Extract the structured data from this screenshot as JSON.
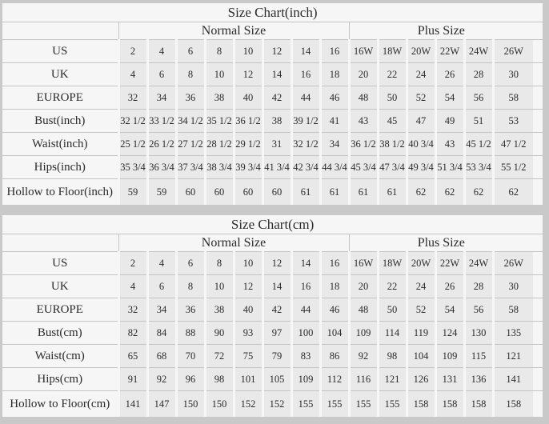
{
  "colors": {
    "page_background": "#c9c9c9",
    "table_background": "#f6f6f6",
    "value_cell_background": "#e9e9e9",
    "grid_line": "#c4c4c4",
    "text": "#2b2b2b"
  },
  "chart_data": [
    {
      "type": "table",
      "title": "Size Chart(inch)",
      "column_groups": [
        {
          "label": "Normal Size",
          "span": 8
        },
        {
          "label": "Plus Size",
          "span": 6
        }
      ],
      "rows": [
        {
          "label": "US",
          "values": [
            "2",
            "4",
            "6",
            "8",
            "10",
            "12",
            "14",
            "16",
            "16W",
            "18W",
            "20W",
            "22W",
            "24W",
            "26W"
          ]
        },
        {
          "label": "UK",
          "values": [
            "4",
            "6",
            "8",
            "10",
            "12",
            "14",
            "16",
            "18",
            "20",
            "22",
            "24",
            "26",
            "28",
            "30"
          ]
        },
        {
          "label": "EUROPE",
          "values": [
            "32",
            "34",
            "36",
            "38",
            "40",
            "42",
            "44",
            "46",
            "48",
            "50",
            "52",
            "54",
            "56",
            "58"
          ]
        },
        {
          "label": "Bust(inch)",
          "values": [
            "32 1/2",
            "33 1/2",
            "34 1/2",
            "35 1/2",
            "36 1/2",
            "38",
            "39 1/2",
            "41",
            "43",
            "45",
            "47",
            "49",
            "51",
            "53"
          ]
        },
        {
          "label": "Waist(inch)",
          "values": [
            "25 1/2",
            "26 1/2",
            "27 1/2",
            "28 1/2",
            "29 1/2",
            "31",
            "32 1/2",
            "34",
            "36 1/2",
            "38 1/2",
            "40 3/4",
            "43",
            "45 1/2",
            "47 1/2"
          ]
        },
        {
          "label": "Hips(inch)",
          "values": [
            "35 3/4",
            "36 3/4",
            "37 3/4",
            "38 3/4",
            "39 3/4",
            "41 3/4",
            "42 3/4",
            "44 3/4",
            "45 3/4",
            "47 3/4",
            "49 3/4",
            "51 3/4",
            "53 3/4",
            "55 1/2"
          ]
        },
        {
          "label": "Hollow to Floor(inch)",
          "values": [
            "59",
            "59",
            "60",
            "60",
            "60",
            "60",
            "61",
            "61",
            "61",
            "61",
            "62",
            "62",
            "62",
            "62"
          ]
        }
      ]
    },
    {
      "type": "table",
      "title": "Size Chart(cm)",
      "column_groups": [
        {
          "label": "Normal Size",
          "span": 8
        },
        {
          "label": "Plus Size",
          "span": 6
        }
      ],
      "rows": [
        {
          "label": "US",
          "values": [
            "2",
            "4",
            "6",
            "8",
            "10",
            "12",
            "14",
            "16",
            "16W",
            "18W",
            "20W",
            "22W",
            "24W",
            "26W"
          ]
        },
        {
          "label": "UK",
          "values": [
            "4",
            "6",
            "8",
            "10",
            "12",
            "14",
            "16",
            "18",
            "20",
            "22",
            "24",
            "26",
            "28",
            "30"
          ]
        },
        {
          "label": "EUROPE",
          "values": [
            "32",
            "34",
            "36",
            "38",
            "40",
            "42",
            "44",
            "46",
            "48",
            "50",
            "52",
            "54",
            "56",
            "58"
          ]
        },
        {
          "label": "Bust(cm)",
          "values": [
            "82",
            "84",
            "88",
            "90",
            "93",
            "97",
            "100",
            "104",
            "109",
            "114",
            "119",
            "124",
            "130",
            "135"
          ]
        },
        {
          "label": "Waist(cm)",
          "values": [
            "65",
            "68",
            "70",
            "72",
            "75",
            "79",
            "83",
            "86",
            "92",
            "98",
            "104",
            "109",
            "115",
            "121"
          ]
        },
        {
          "label": "Hips(cm)",
          "values": [
            "91",
            "92",
            "96",
            "98",
            "101",
            "105",
            "109",
            "112",
            "116",
            "121",
            "126",
            "131",
            "136",
            "141"
          ]
        },
        {
          "label": "Hollow to Floor(cm)",
          "values": [
            "141",
            "147",
            "150",
            "150",
            "152",
            "152",
            "155",
            "155",
            "155",
            "155",
            "158",
            "158",
            "158",
            "158"
          ]
        }
      ]
    }
  ]
}
